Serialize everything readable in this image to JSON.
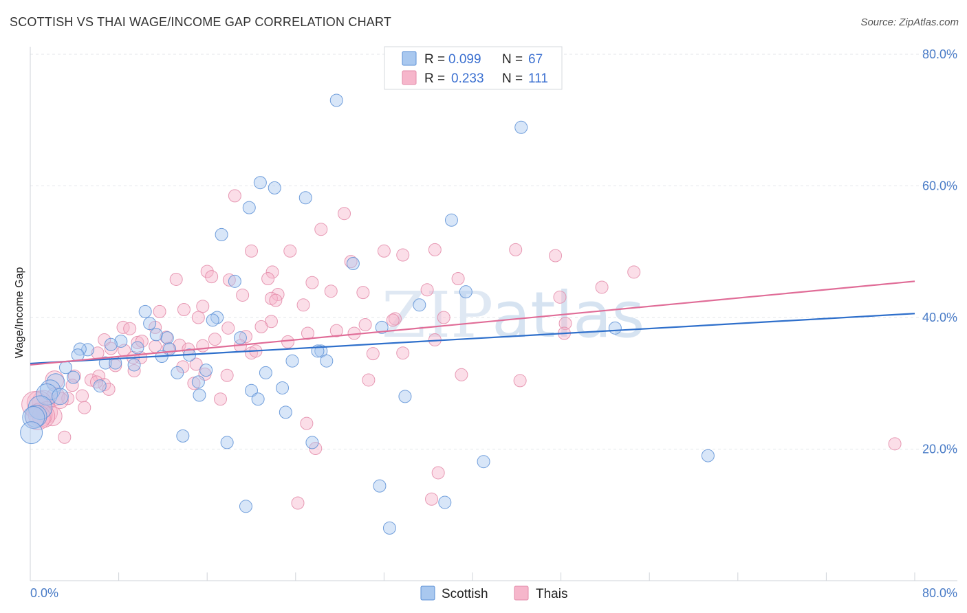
{
  "title": "SCOTTISH VS THAI WAGE/INCOME GAP CORRELATION CHART",
  "source": "Source: ZipAtlas.com",
  "watermark": {
    "part1": "ZIP",
    "part2": "atlas"
  },
  "colors": {
    "scottish_fill": "#a9c8ef",
    "scottish_stroke": "#5b8fd6",
    "scottish_line": "#2e6fcb",
    "thai_fill": "#f6b6cb",
    "thai_stroke": "#e38aa8",
    "thai_line": "#e06c97",
    "grid": "#e3e6ea",
    "axis_text": "#4a7cc7"
  },
  "legend": {
    "rows": [
      {
        "r_label": "R =",
        "r_value": "0.099",
        "n_label": "N =",
        "n_value": "67"
      },
      {
        "r_label": "R =",
        "r_value": "0.233",
        "n_label": "N =",
        "n_value": "111"
      }
    ],
    "bottom": [
      "Scottish",
      "Thais"
    ]
  },
  "chart_data": {
    "type": "scatter",
    "title": "SCOTTISH VS THAI WAGE/INCOME GAP CORRELATION CHART",
    "xlabel": "",
    "ylabel": "Wage/Income Gap",
    "xlim": [
      0,
      80
    ],
    "ylim": [
      0,
      80
    ],
    "x_tick_labels": [
      "0.0%",
      "80.0%"
    ],
    "y_tick_labels": [
      "20.0%",
      "40.0%",
      "60.0%",
      "80.0%"
    ],
    "y_ticks": [
      20,
      40,
      60,
      80
    ],
    "grid": true,
    "legend_position": "top-center",
    "series": [
      {
        "name": "Scottish",
        "r": 0.099,
        "n": 67,
        "trend": {
          "x": [
            0,
            80
          ],
          "y": [
            33.0,
            40.6
          ]
        },
        "points": [
          [
            27.7,
            73.0
          ],
          [
            44.4,
            68.9
          ],
          [
            20.8,
            60.5
          ],
          [
            22.1,
            59.7
          ],
          [
            24.9,
            58.2
          ],
          [
            19.8,
            56.7
          ],
          [
            38.1,
            54.8
          ],
          [
            17.3,
            52.6
          ],
          [
            29.2,
            48.2
          ],
          [
            18.5,
            45.5
          ],
          [
            39.4,
            43.9
          ],
          [
            35.2,
            41.9
          ],
          [
            10.4,
            40.9
          ],
          [
            16.9,
            40.0
          ],
          [
            16.5,
            39.6
          ],
          [
            10.8,
            39.1
          ],
          [
            31.8,
            38.5
          ],
          [
            52.9,
            38.4
          ],
          [
            11.4,
            37.4
          ],
          [
            8.2,
            36.4
          ],
          [
            12.4,
            36.9
          ],
          [
            19.0,
            36.9
          ],
          [
            7.3,
            35.9
          ],
          [
            9.7,
            35.4
          ],
          [
            5.2,
            35.1
          ],
          [
            4.5,
            35.2
          ],
          [
            12.6,
            35.2
          ],
          [
            26.3,
            34.9
          ],
          [
            26.0,
            34.9
          ],
          [
            4.3,
            34.3
          ],
          [
            11.9,
            34.1
          ],
          [
            14.4,
            34.3
          ],
          [
            23.7,
            33.4
          ],
          [
            26.8,
            33.4
          ],
          [
            6.8,
            33.1
          ],
          [
            7.7,
            33.1
          ],
          [
            9.4,
            32.8
          ],
          [
            3.2,
            32.4
          ],
          [
            15.9,
            32.0
          ],
          [
            13.3,
            31.6
          ],
          [
            21.3,
            31.6
          ],
          [
            3.9,
            30.9
          ],
          [
            2.3,
            30.1
          ],
          [
            15.2,
            30.2
          ],
          [
            6.3,
            29.6
          ],
          [
            22.8,
            29.3
          ],
          [
            20.0,
            28.9
          ],
          [
            1.8,
            29.0
          ],
          [
            1.5,
            28.3
          ],
          [
            15.3,
            28.2
          ],
          [
            33.9,
            28.0
          ],
          [
            20.6,
            27.6
          ],
          [
            2.7,
            28.0
          ],
          [
            0.9,
            26.3
          ],
          [
            0.5,
            25.0
          ],
          [
            23.1,
            25.6
          ],
          [
            0.3,
            24.8
          ],
          [
            0.1,
            22.5
          ],
          [
            13.8,
            22.0
          ],
          [
            17.8,
            21.0
          ],
          [
            25.5,
            21.0
          ],
          [
            61.3,
            19.0
          ],
          [
            41.0,
            18.1
          ],
          [
            31.6,
            14.4
          ],
          [
            37.5,
            11.9
          ],
          [
            19.5,
            11.3
          ],
          [
            32.5,
            8.0
          ]
        ]
      },
      {
        "name": "Thais",
        "r": 0.233,
        "n": 111,
        "trend": {
          "x": [
            0,
            80
          ],
          "y": [
            32.8,
            45.5
          ]
        },
        "points": [
          [
            18.5,
            58.5
          ],
          [
            28.4,
            55.8
          ],
          [
            26.3,
            53.4
          ],
          [
            20.0,
            50.1
          ],
          [
            23.5,
            50.1
          ],
          [
            32.0,
            50.1
          ],
          [
            33.7,
            49.5
          ],
          [
            36.6,
            50.3
          ],
          [
            43.9,
            50.3
          ],
          [
            47.5,
            49.4
          ],
          [
            29.0,
            48.5
          ],
          [
            54.6,
            46.9
          ],
          [
            16.0,
            47.0
          ],
          [
            21.9,
            46.9
          ],
          [
            16.4,
            46.2
          ],
          [
            13.2,
            45.8
          ],
          [
            18.0,
            45.7
          ],
          [
            21.5,
            45.9
          ],
          [
            38.7,
            45.9
          ],
          [
            25.5,
            45.3
          ],
          [
            35.9,
            44.2
          ],
          [
            27.2,
            44.0
          ],
          [
            51.7,
            44.6
          ],
          [
            30.1,
            43.8
          ],
          [
            19.2,
            43.4
          ],
          [
            22.4,
            43.5
          ],
          [
            47.9,
            43.1
          ],
          [
            21.8,
            42.9
          ],
          [
            22.2,
            42.6
          ],
          [
            24.7,
            41.9
          ],
          [
            15.6,
            41.7
          ],
          [
            13.9,
            41.2
          ],
          [
            11.7,
            40.9
          ],
          [
            15.2,
            40.0
          ],
          [
            33.0,
            39.8
          ],
          [
            37.4,
            40.0
          ],
          [
            32.8,
            39.6
          ],
          [
            21.8,
            39.4
          ],
          [
            30.3,
            38.9
          ],
          [
            20.9,
            38.6
          ],
          [
            48.4,
            39.1
          ],
          [
            8.4,
            38.5
          ],
          [
            9.0,
            38.3
          ],
          [
            11.3,
            38.5
          ],
          [
            17.9,
            38.4
          ],
          [
            27.7,
            38.0
          ],
          [
            25.1,
            37.6
          ],
          [
            29.3,
            37.6
          ],
          [
            48.3,
            37.6
          ],
          [
            6.7,
            36.6
          ],
          [
            12.3,
            37.0
          ],
          [
            16.7,
            36.7
          ],
          [
            19.5,
            37.1
          ],
          [
            23.3,
            36.3
          ],
          [
            36.6,
            36.6
          ],
          [
            9.7,
            36.2
          ],
          [
            10.1,
            36.4
          ],
          [
            11.3,
            35.6
          ],
          [
            13.5,
            35.8
          ],
          [
            15.6,
            35.7
          ],
          [
            19.0,
            35.7
          ],
          [
            7.3,
            35.3
          ],
          [
            12.5,
            35.3
          ],
          [
            14.3,
            35.2
          ],
          [
            8.5,
            35.0
          ],
          [
            20.0,
            34.6
          ],
          [
            6.1,
            34.6
          ],
          [
            31.0,
            34.5
          ],
          [
            33.7,
            34.6
          ],
          [
            10.0,
            33.9
          ],
          [
            9.3,
            33.9
          ],
          [
            20.4,
            34.9
          ],
          [
            13.8,
            32.5
          ],
          [
            7.7,
            32.7
          ],
          [
            15.0,
            32.9
          ],
          [
            9.4,
            31.9
          ],
          [
            15.8,
            31.4
          ],
          [
            17.8,
            31.2
          ],
          [
            6.2,
            31.1
          ],
          [
            4.0,
            31.1
          ],
          [
            2.2,
            30.5
          ],
          [
            5.5,
            30.5
          ],
          [
            30.6,
            30.5
          ],
          [
            39.0,
            31.3
          ],
          [
            44.3,
            30.4
          ],
          [
            14.8,
            30.0
          ],
          [
            6.7,
            29.8
          ],
          [
            3.8,
            29.7
          ],
          [
            6.0,
            30.2
          ],
          [
            7.1,
            29.1
          ],
          [
            4.7,
            28.1
          ],
          [
            2.3,
            28.0
          ],
          [
            17.2,
            27.6
          ],
          [
            3.4,
            27.7
          ],
          [
            2.7,
            27.4
          ],
          [
            1.2,
            27.2
          ],
          [
            0.8,
            27.0
          ],
          [
            0.4,
            26.8
          ],
          [
            4.9,
            26.3
          ],
          [
            1.5,
            25.6
          ],
          [
            2.0,
            25.0
          ],
          [
            1.2,
            25.0
          ],
          [
            0.9,
            25.2
          ],
          [
            0.7,
            24.8
          ],
          [
            3.1,
            21.8
          ],
          [
            78.2,
            20.8
          ],
          [
            25.0,
            23.9
          ],
          [
            25.8,
            20.1
          ],
          [
            36.9,
            16.4
          ],
          [
            36.3,
            12.4
          ],
          [
            24.2,
            11.8
          ]
        ]
      }
    ]
  }
}
